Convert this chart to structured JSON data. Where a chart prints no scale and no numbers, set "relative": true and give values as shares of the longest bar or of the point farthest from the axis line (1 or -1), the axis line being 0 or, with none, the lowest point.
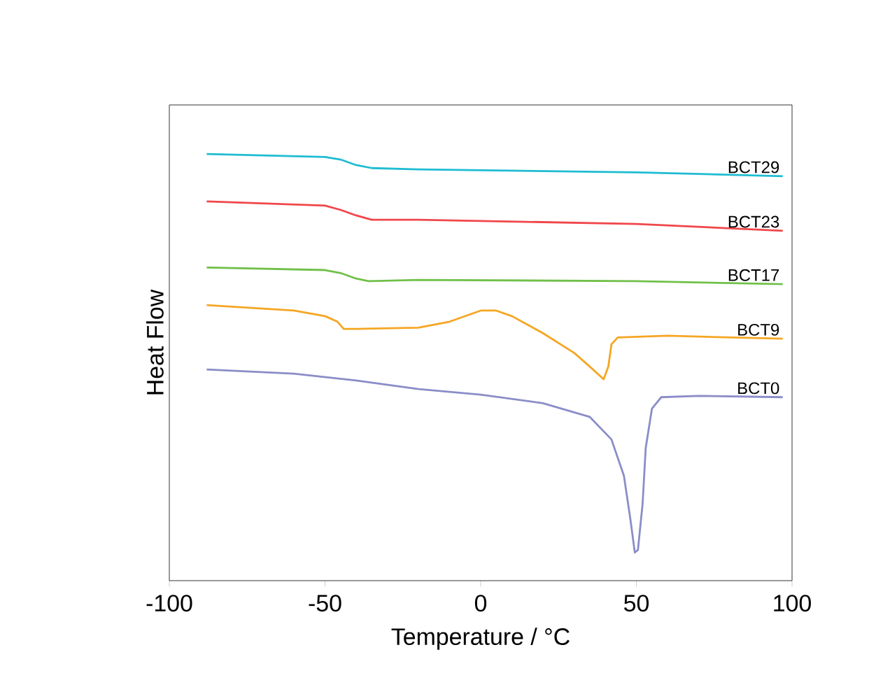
{
  "chart_data": {
    "type": "line",
    "xlabel": "Temperature / °C",
    "ylabel": "Heat Flow",
    "relative": true,
    "xlim": [
      -100,
      100
    ],
    "xticks": [
      -100,
      -50,
      0,
      50,
      100
    ],
    "grid": false,
    "legend": false,
    "marker": "none",
    "line_style": "solid",
    "series": [
      {
        "name": "BCT29",
        "color": "#1fbcd2",
        "x": [
          -88,
          -50,
          -45,
          -40,
          -35,
          -20,
          50,
          97
        ],
        "values": [
          1.0,
          0.993,
          0.987,
          0.974,
          0.967,
          0.964,
          0.957,
          0.948
        ]
      },
      {
        "name": "BCT23",
        "color": "#f0474b",
        "x": [
          -88,
          -50,
          -45,
          -40,
          -35,
          -20,
          50,
          97
        ],
        "values": [
          0.889,
          0.879,
          0.869,
          0.856,
          0.846,
          0.846,
          0.836,
          0.82
        ]
      },
      {
        "name": "BCT17",
        "color": "#70c04a",
        "x": [
          -88,
          -50,
          -45,
          -40,
          -36,
          -20,
          50,
          97
        ],
        "values": [
          0.734,
          0.728,
          0.721,
          0.708,
          0.702,
          0.705,
          0.702,
          0.695
        ]
      },
      {
        "name": "BCT9",
        "color": "#f5a623",
        "x": [
          -88,
          -60,
          -50,
          -46,
          -44,
          -40,
          -20,
          -10,
          -5,
          0,
          5,
          10,
          20,
          30,
          35,
          38,
          39.5,
          41,
          42,
          44,
          60,
          97
        ],
        "values": [
          0.646,
          0.633,
          0.62,
          0.607,
          0.59,
          0.59,
          0.593,
          0.607,
          0.62,
          0.633,
          0.633,
          0.62,
          0.58,
          0.534,
          0.502,
          0.482,
          0.472,
          0.502,
          0.554,
          0.57,
          0.574,
          0.567
        ]
      },
      {
        "name": "BCT0",
        "color": "#8b8dc8",
        "x": [
          -88,
          -60,
          -40,
          -20,
          0,
          20,
          35,
          42,
          46,
          48,
          49.5,
          50.5,
          52,
          53,
          55,
          58,
          70,
          97
        ],
        "values": [
          0.495,
          0.485,
          0.469,
          0.449,
          0.436,
          0.416,
          0.384,
          0.331,
          0.246,
          0.148,
          0.066,
          0.072,
          0.18,
          0.311,
          0.403,
          0.43,
          0.433,
          0.43
        ]
      }
    ]
  }
}
